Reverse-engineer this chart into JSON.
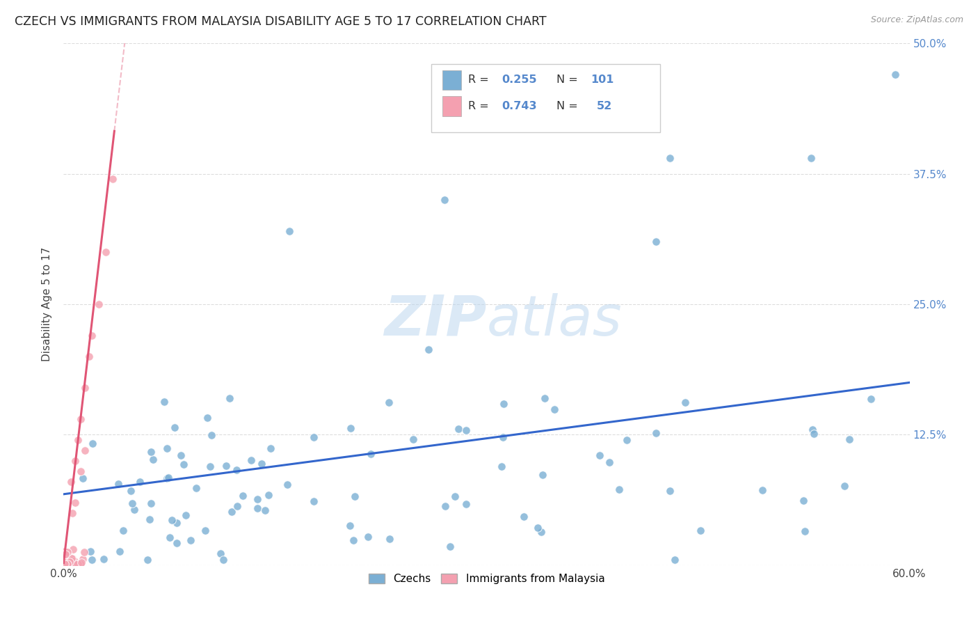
{
  "title": "CZECH VS IMMIGRANTS FROM MALAYSIA DISABILITY AGE 5 TO 17 CORRELATION CHART",
  "source": "Source: ZipAtlas.com",
  "ylabel": "Disability Age 5 to 17",
  "xlim": [
    0.0,
    0.6
  ],
  "ylim": [
    0.0,
    0.5
  ],
  "yticks": [
    0.0,
    0.125,
    0.25,
    0.375,
    0.5
  ],
  "yticklabels_right": [
    "",
    "12.5%",
    "25.0%",
    "37.5%",
    "50.0%"
  ],
  "czech_color": "#7BAFD4",
  "malaysia_color": "#F4A0B0",
  "czech_line_color": "#3366CC",
  "malaysia_line_color": "#E05575",
  "czech_R": 0.255,
  "czech_N": 101,
  "malaysia_R": 0.743,
  "malaysia_N": 52,
  "watermark": "ZIPatlas",
  "background_color": "#ffffff",
  "grid_color": "#dddddd",
  "tick_color": "#5588CC",
  "legend_text_color": "#333333"
}
